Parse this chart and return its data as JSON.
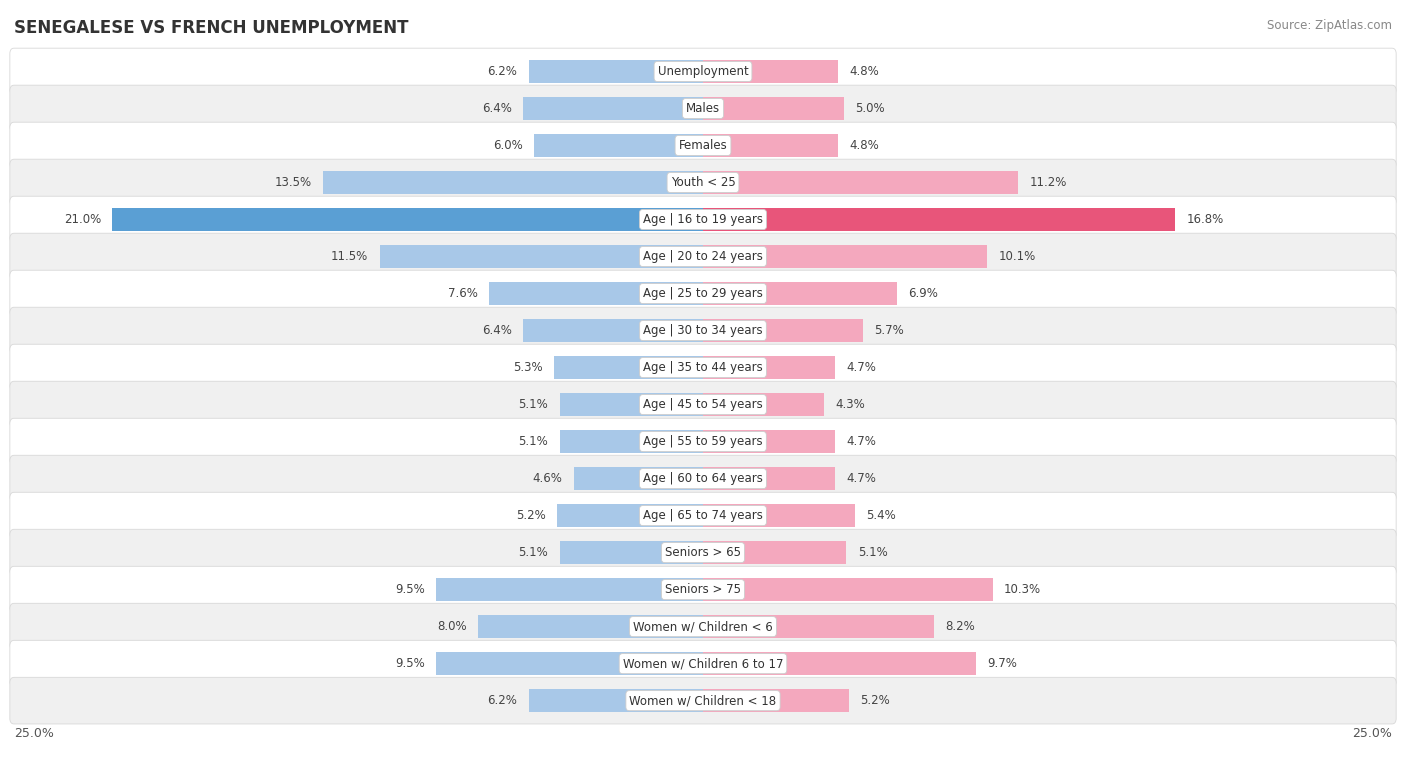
{
  "title": "SENEGALESE VS FRENCH UNEMPLOYMENT",
  "source": "Source: ZipAtlas.com",
  "categories": [
    "Unemployment",
    "Males",
    "Females",
    "Youth < 25",
    "Age | 16 to 19 years",
    "Age | 20 to 24 years",
    "Age | 25 to 29 years",
    "Age | 30 to 34 years",
    "Age | 35 to 44 years",
    "Age | 45 to 54 years",
    "Age | 55 to 59 years",
    "Age | 60 to 64 years",
    "Age | 65 to 74 years",
    "Seniors > 65",
    "Seniors > 75",
    "Women w/ Children < 6",
    "Women w/ Children 6 to 17",
    "Women w/ Children < 18"
  ],
  "senegalese": [
    6.2,
    6.4,
    6.0,
    13.5,
    21.0,
    11.5,
    7.6,
    6.4,
    5.3,
    5.1,
    5.1,
    4.6,
    5.2,
    5.1,
    9.5,
    8.0,
    9.5,
    6.2
  ],
  "french": [
    4.8,
    5.0,
    4.8,
    11.2,
    16.8,
    10.1,
    6.9,
    5.7,
    4.7,
    4.3,
    4.7,
    4.7,
    5.4,
    5.1,
    10.3,
    8.2,
    9.7,
    5.2
  ],
  "senegalese_color": "#a8c8e8",
  "french_color": "#f4a8be",
  "senegalese_color_highlight": "#5a9fd4",
  "french_color_highlight": "#e8557a",
  "row_even_color": "#ffffff",
  "row_odd_color": "#f0f0f0",
  "row_border_color": "#d8d8d8",
  "max_val": 25.0,
  "label_color": "#555555",
  "title_color": "#333333",
  "legend_sene_color": "#a8c8e8",
  "legend_french_color": "#f4a8be"
}
